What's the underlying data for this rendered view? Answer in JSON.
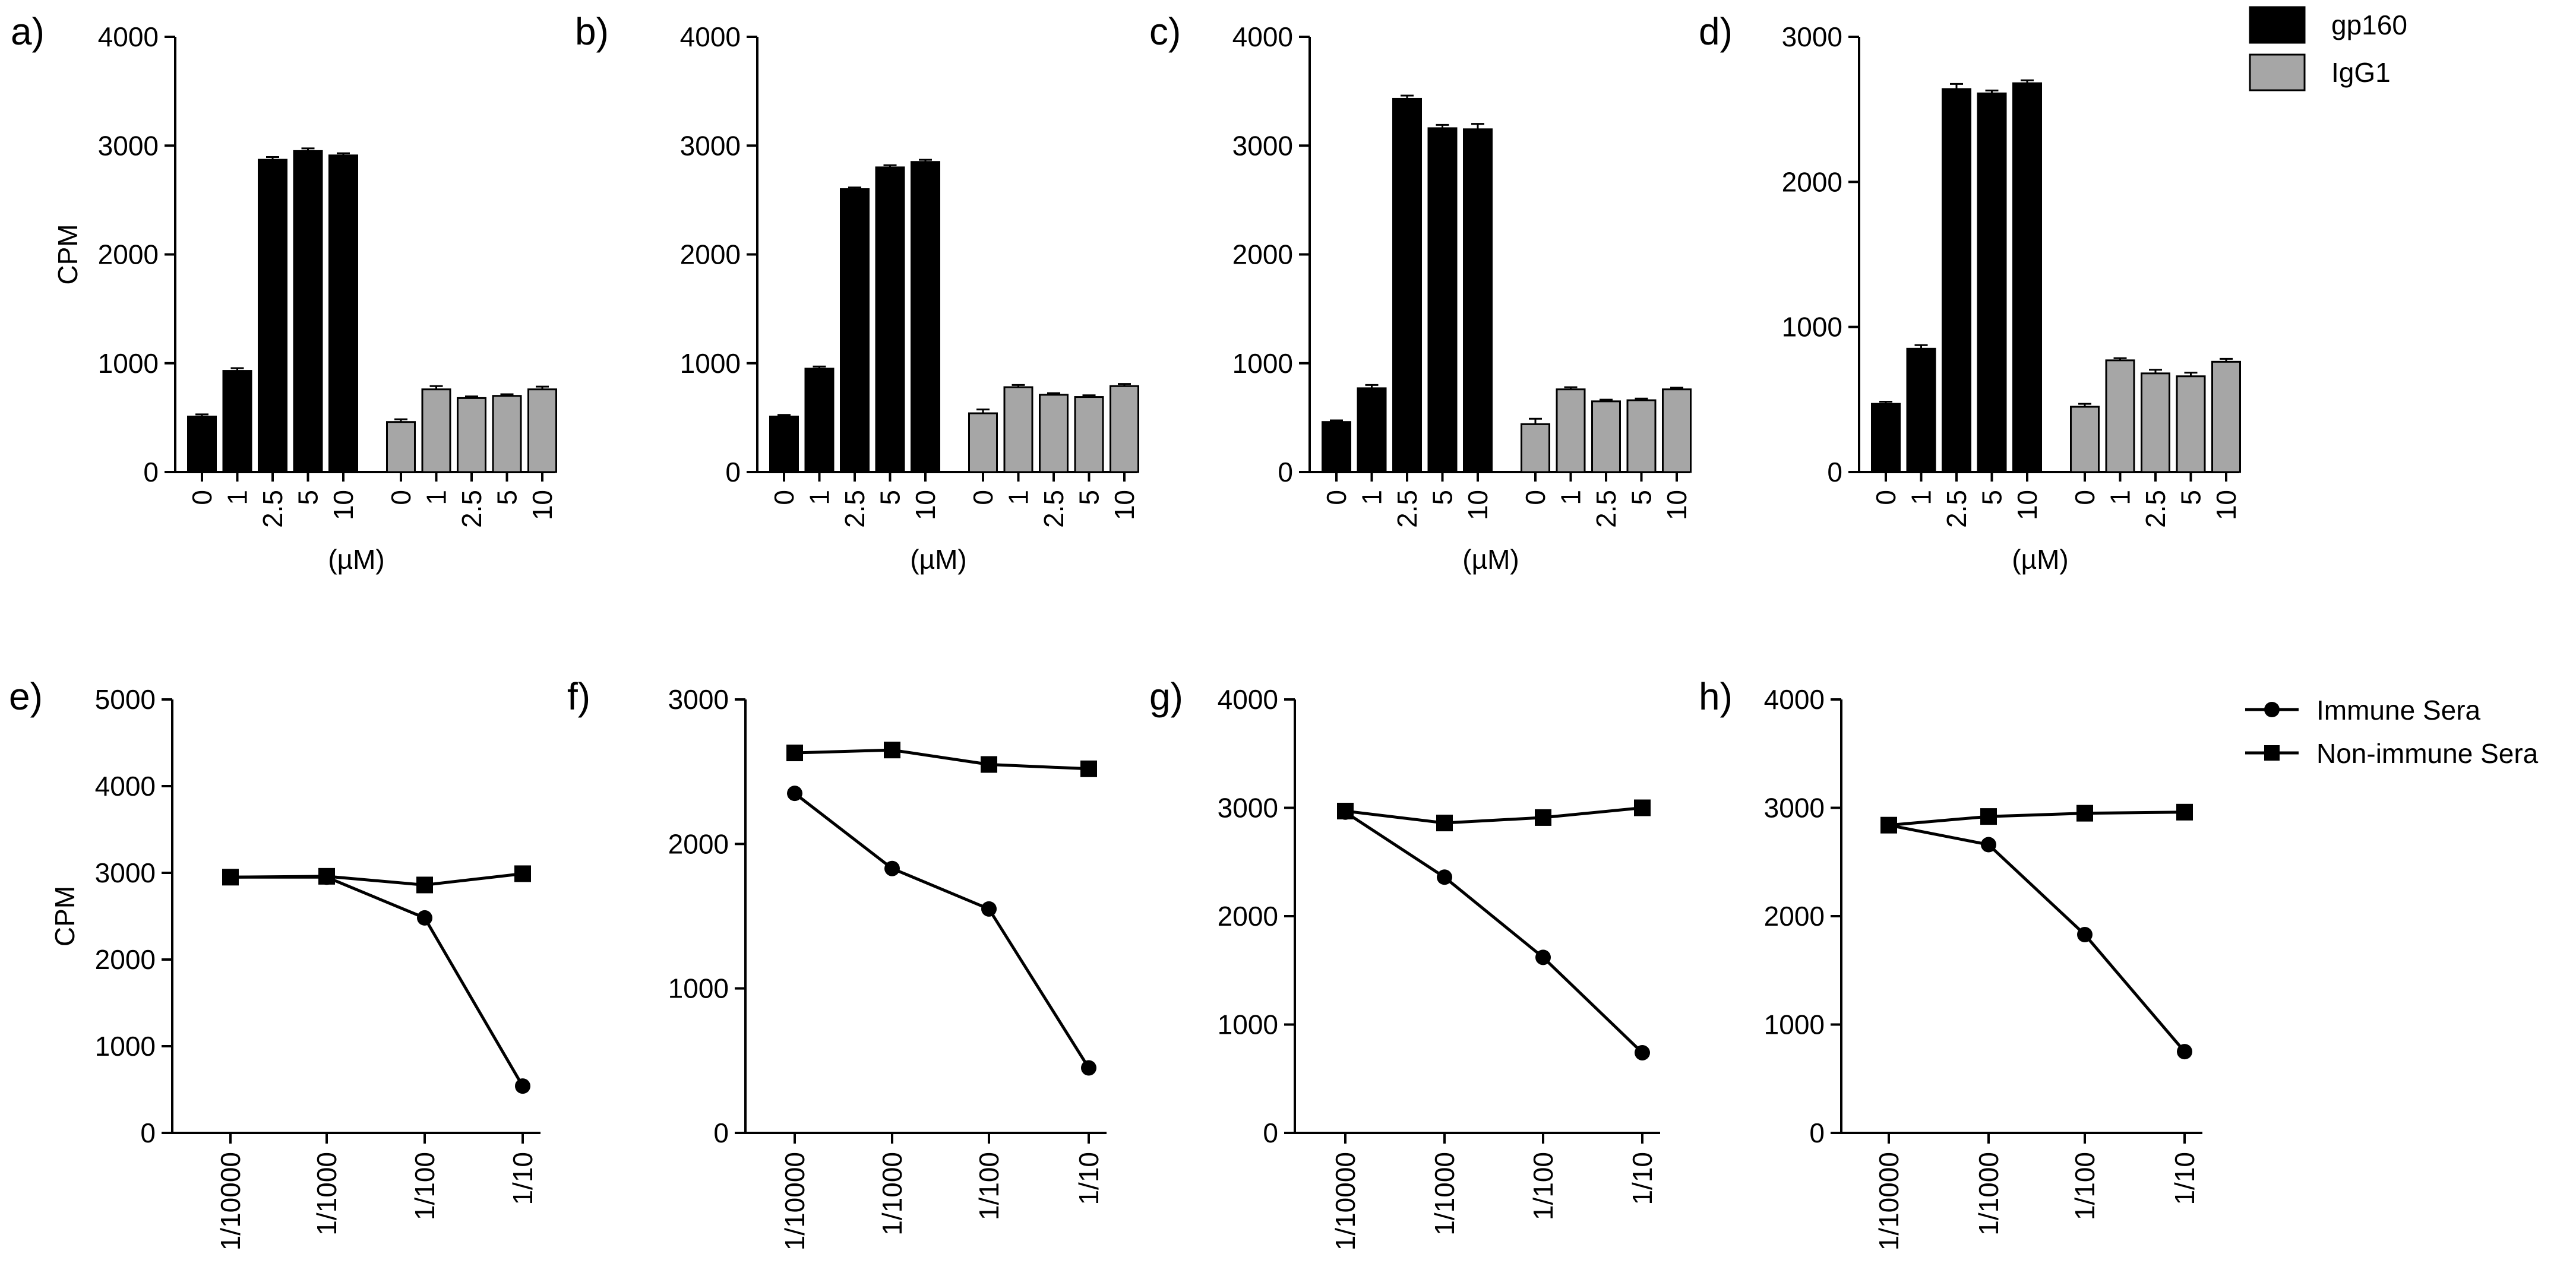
{
  "chart_data": [
    {
      "type": "bar",
      "panel": "a)",
      "ylabel": "CPM",
      "xlabel": "(µM)",
      "ylim": [
        0,
        4000
      ],
      "yticks": [
        "0",
        "1000",
        "2000",
        "3000",
        "4000"
      ],
      "categories": [
        "0",
        "1",
        "2.5",
        "5",
        "10"
      ],
      "series": [
        {
          "name": "gp160",
          "values": [
            510,
            930,
            2870,
            2950,
            2910
          ],
          "errors": [
            20,
            25,
            25,
            25,
            20
          ]
        },
        {
          "name": "IgG1",
          "values": [
            460,
            760,
            680,
            700,
            760
          ],
          "errors": [
            25,
            30,
            15,
            15,
            25
          ]
        }
      ]
    },
    {
      "type": "bar",
      "panel": "b)",
      "ylabel": "",
      "xlabel": "(µM)",
      "ylim": [
        0,
        4000
      ],
      "yticks": [
        "0",
        "1000",
        "2000",
        "3000",
        "4000"
      ],
      "categories": [
        "0",
        "1",
        "2.5",
        "5",
        "10"
      ],
      "series": [
        {
          "name": "gp160",
          "values": [
            510,
            950,
            2600,
            2800,
            2850
          ],
          "errors": [
            15,
            20,
            15,
            20,
            20
          ]
        },
        {
          "name": "IgG1",
          "values": [
            540,
            780,
            710,
            690,
            790
          ],
          "errors": [
            35,
            20,
            15,
            15,
            20
          ]
        }
      ]
    },
    {
      "type": "bar",
      "panel": "c)",
      "ylabel": "",
      "xlabel": "(µM)",
      "ylim": [
        0,
        4000
      ],
      "yticks": [
        "0",
        "1000",
        "2000",
        "3000",
        "4000"
      ],
      "categories": [
        "0",
        "1",
        "2.5",
        "5",
        "10"
      ],
      "series": [
        {
          "name": "gp160",
          "values": [
            460,
            770,
            3430,
            3160,
            3150
          ],
          "errors": [
            15,
            30,
            30,
            30,
            50
          ]
        },
        {
          "name": "IgG1",
          "values": [
            440,
            760,
            650,
            660,
            760
          ],
          "errors": [
            50,
            20,
            15,
            15,
            15
          ]
        }
      ]
    },
    {
      "type": "bar",
      "panel": "d)",
      "ylabel": "",
      "xlabel": "(µM)",
      "ylim": [
        0,
        3000
      ],
      "yticks": [
        "0",
        "1000",
        "2000",
        "3000"
      ],
      "categories": [
        "0",
        "1",
        "2.5",
        "5",
        "10"
      ],
      "series": [
        {
          "name": "gp160",
          "values": [
            470,
            850,
            2640,
            2610,
            2680
          ],
          "errors": [
            15,
            25,
            35,
            20,
            20
          ]
        },
        {
          "name": "IgG1",
          "values": [
            450,
            770,
            680,
            660,
            760
          ],
          "errors": [
            20,
            15,
            25,
            25,
            20
          ]
        }
      ]
    },
    {
      "type": "line",
      "panel": "e)",
      "ylabel": "CPM",
      "xlabel": "",
      "ylim": [
        0,
        5000
      ],
      "yticks": [
        "0",
        "1000",
        "2000",
        "3000",
        "4000",
        "5000"
      ],
      "categories": [
        "1/10000",
        "1/1000",
        "1/100",
        "1/10"
      ],
      "series": [
        {
          "name": "Immune Sera",
          "marker": "circle",
          "values": [
            2950,
            2950,
            2480,
            540
          ]
        },
        {
          "name": "Non-immune Sera",
          "marker": "square",
          "values": [
            2950,
            2960,
            2860,
            2990
          ]
        }
      ]
    },
    {
      "type": "line",
      "panel": "f)",
      "ylabel": "",
      "xlabel": "",
      "ylim": [
        0,
        3000
      ],
      "yticks": [
        "0",
        "1000",
        "2000",
        "3000"
      ],
      "categories": [
        "1/10000",
        "1/1000",
        "1/100",
        "1/10"
      ],
      "series": [
        {
          "name": "Immune Sera",
          "marker": "circle",
          "values": [
            2350,
            1830,
            1550,
            450
          ]
        },
        {
          "name": "Non-immune Sera",
          "marker": "square",
          "values": [
            2630,
            2650,
            2550,
            2520
          ]
        }
      ]
    },
    {
      "type": "line",
      "panel": "g)",
      "ylabel": "",
      "xlabel": "",
      "ylim": [
        0,
        4000
      ],
      "yticks": [
        "0",
        "1000",
        "2000",
        "3000",
        "4000"
      ],
      "categories": [
        "1/10000",
        "1/1000",
        "1/100",
        "1/10"
      ],
      "series": [
        {
          "name": "Immune Sera",
          "marker": "circle",
          "values": [
            2960,
            2360,
            1620,
            740
          ]
        },
        {
          "name": "Non-immune Sera",
          "marker": "square",
          "values": [
            2970,
            2860,
            2910,
            3000
          ]
        }
      ]
    },
    {
      "type": "line",
      "panel": "h)",
      "ylabel": "",
      "xlabel": "",
      "ylim": [
        0,
        4000
      ],
      "yticks": [
        "0",
        "1000",
        "2000",
        "3000",
        "4000"
      ],
      "categories": [
        "1/10000",
        "1/1000",
        "1/100",
        "1/10"
      ],
      "series": [
        {
          "name": "Immune Sera",
          "marker": "circle",
          "values": [
            2840,
            2660,
            1830,
            750
          ]
        },
        {
          "name": "Non-immune Sera",
          "marker": "square",
          "values": [
            2840,
            2920,
            2950,
            2960
          ]
        }
      ]
    }
  ],
  "legends": {
    "bar": [
      {
        "label": "gp160",
        "color": "#000000"
      },
      {
        "label": "IgG1",
        "color": "#a6a6a6"
      }
    ],
    "line": [
      {
        "label": "Immune Sera",
        "marker": "circle"
      },
      {
        "label": "Non-immune Sera",
        "marker": "square"
      }
    ]
  },
  "colors": {
    "gp160": "#000000",
    "IgG1": "#a6a6a6"
  }
}
